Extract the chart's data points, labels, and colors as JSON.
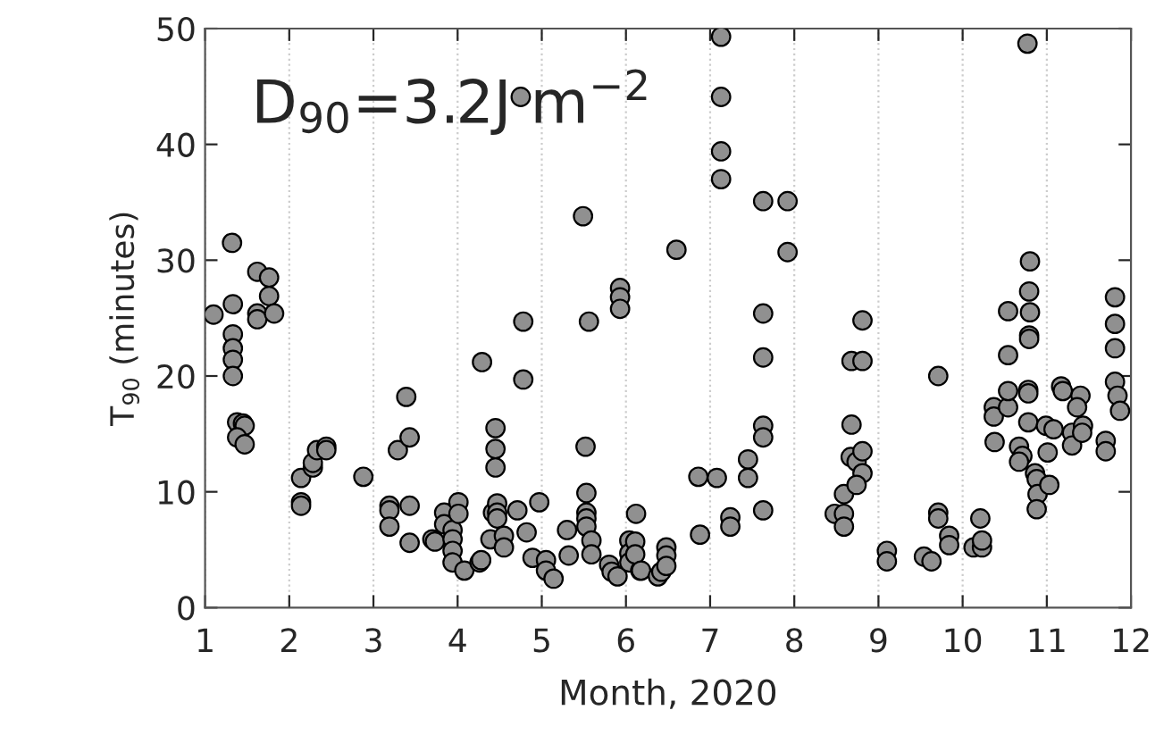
{
  "chart_data": {
    "type": "scatter",
    "xlabel": "Month, 2020",
    "ylabel": "T$_{90}$ (minutes)",
    "annotations": [
      "D$_{90}$=3.2J m$^{−2}$"
    ],
    "xlim": [
      1,
      12
    ],
    "xticks": [
      1,
      2,
      3,
      4,
      5,
      6,
      7,
      8,
      9,
      10,
      11,
      12
    ],
    "ylim": [
      0,
      50
    ],
    "yticks": [
      0,
      10,
      20,
      30,
      40,
      50
    ],
    "grid": "x",
    "marker": "circle",
    "series": [
      {
        "color": "#909090",
        "x": [
          1.1,
          1.32,
          1.33,
          1.33,
          1.33,
          1.33,
          1.33,
          1.38,
          1.45,
          1.47,
          1.38,
          1.47,
          1.62,
          1.76,
          1.76,
          1.62,
          1.62,
          1.82,
          2.14,
          2.14,
          2.14,
          2.28,
          2.28,
          2.33,
          2.44,
          2.44,
          2.88,
          3.19,
          3.19,
          3.19,
          3.29,
          3.39,
          3.43,
          3.43,
          3.43,
          3.7,
          3.73,
          3.84,
          3.84,
          3.94,
          3.94,
          3.94,
          3.94,
          4.01,
          4.01,
          4.08,
          4.26,
          4.28,
          4.29,
          4.39,
          4.45,
          4.45,
          4.45,
          4.42,
          4.47,
          4.47,
          4.47,
          4.55,
          4.55,
          4.71,
          4.78,
          4.78,
          4.75,
          4.82,
          4.89,
          5.05,
          4.97,
          5.05,
          5.14,
          5.3,
          5.32,
          5.49,
          5.56,
          5.52,
          5.53,
          5.53,
          5.53,
          5.53,
          5.59,
          5.59,
          5.8,
          5.83,
          5.9,
          5.93,
          5.93,
          5.93,
          6.04,
          6.04,
          6.04,
          6.12,
          6.17,
          6.11,
          6.11,
          6.18,
          6.38,
          6.42,
          6.48,
          6.48,
          6.48,
          6.6,
          6.88,
          6.86,
          7.08,
          7.13,
          7.13,
          7.13,
          7.13,
          7.24,
          7.24,
          7.45,
          7.45,
          7.63,
          7.92,
          7.92,
          7.63,
          7.63,
          7.63,
          7.63,
          7.63,
          8.48,
          8.59,
          8.59,
          8.59,
          8.68,
          8.68,
          8.81,
          8.81,
          8.67,
          8.74,
          8.81,
          8.81,
          8.74,
          9.1,
          9.1,
          9.54,
          9.63,
          9.71,
          9.71,
          9.71,
          9.84,
          9.84,
          10.13,
          10.23,
          10.23,
          10.21,
          10.37,
          10.37,
          10.54,
          10.54,
          10.38,
          10.54,
          10.54,
          10.67,
          10.71,
          10.67,
          10.77,
          10.78,
          10.78,
          10.78,
          10.79,
          10.8,
          10.79,
          10.79,
          10.8,
          10.86,
          10.88,
          10.89,
          10.88,
          10.99,
          11.08,
          11.01,
          11.03,
          11.17,
          11.19,
          11.3,
          11.3,
          11.4,
          11.36,
          11.43,
          11.42,
          11.7,
          11.7,
          11.81,
          11.81,
          11.81,
          11.81,
          11.84,
          11.87
        ],
        "values": [
          25.3,
          31.5,
          26.2,
          23.6,
          22.4,
          21.4,
          20.0,
          16.0,
          15.9,
          15.7,
          14.7,
          14.1,
          29.0,
          28.5,
          26.9,
          25.4,
          24.9,
          25.4,
          11.2,
          9.1,
          8.8,
          12.1,
          12.5,
          13.6,
          13.9,
          13.6,
          11.3,
          8.8,
          8.4,
          7.0,
          13.6,
          18.2,
          14.7,
          8.8,
          5.6,
          5.9,
          5.7,
          8.2,
          7.2,
          6.7,
          5.9,
          4.9,
          3.9,
          9.1,
          8.1,
          3.2,
          3.9,
          4.1,
          21.2,
          5.9,
          15.5,
          13.7,
          12.1,
          8.2,
          9.0,
          8.2,
          7.7,
          6.2,
          5.2,
          8.4,
          24.7,
          19.7,
          44.1,
          6.5,
          4.3,
          4.1,
          9.1,
          3.2,
          2.5,
          6.7,
          4.5,
          33.8,
          24.7,
          13.9,
          9.9,
          8.2,
          7.7,
          7.0,
          5.8,
          4.6,
          3.7,
          3.1,
          2.7,
          27.6,
          26.8,
          25.8,
          5.8,
          4.7,
          3.9,
          8.1,
          3.2,
          5.7,
          4.6,
          3.2,
          2.7,
          3.1,
          5.2,
          4.5,
          3.6,
          30.9,
          6.3,
          11.3,
          11.2,
          49.3,
          44.1,
          39.4,
          37.0,
          7.8,
          7.0,
          12.8,
          11.2,
          35.1,
          35.1,
          30.7,
          25.4,
          21.6,
          15.7,
          14.7,
          8.4,
          8.1,
          8.1,
          7.0,
          9.8,
          15.8,
          21.3,
          21.3,
          24.8,
          13.0,
          12.6,
          13.5,
          11.6,
          10.6,
          4.9,
          4.0,
          4.4,
          4.0,
          20.0,
          8.2,
          7.7,
          6.2,
          5.4,
          5.2,
          5.2,
          5.8,
          7.7,
          17.3,
          16.5,
          17.3,
          18.7,
          14.3,
          21.8,
          25.6,
          13.9,
          13.1,
          12.6,
          48.7,
          18.8,
          18.5,
          16.0,
          27.3,
          25.5,
          23.5,
          23.2,
          29.9,
          11.6,
          11.1,
          9.8,
          8.5,
          15.7,
          15.4,
          13.4,
          10.6,
          19.1,
          18.7,
          15.1,
          14.0,
          18.3,
          17.3,
          15.7,
          15.1,
          14.4,
          13.5,
          26.8,
          24.5,
          22.4,
          19.5,
          18.3,
          17.0
        ]
      }
    ]
  }
}
